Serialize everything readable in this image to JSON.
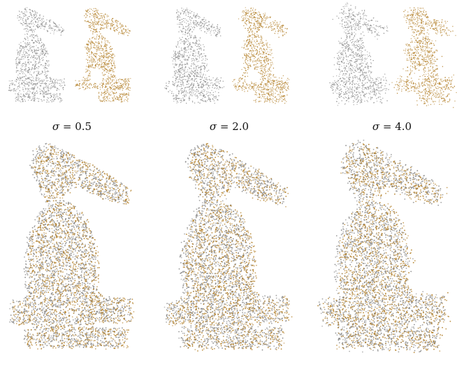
{
  "figure": {
    "captions": [
      {
        "symbol": "σ",
        "text": " = 0.5"
      },
      {
        "symbol": "σ",
        "text": " = 2.0"
      },
      {
        "symbol": "σ",
        "text": " = 4.0"
      }
    ],
    "noise_levels": [
      0.5,
      2.0,
      4.0
    ]
  },
  "colors": {
    "source_cloud": "#8a8a8a",
    "target_cloud": "#b5832e",
    "background": "#ffffff"
  }
}
